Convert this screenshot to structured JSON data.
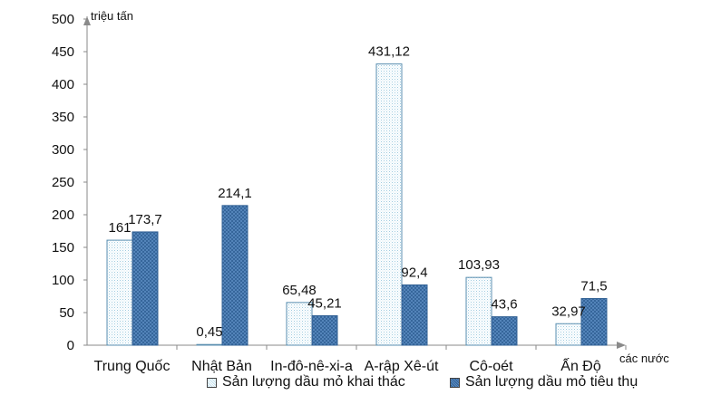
{
  "chart_data": {
    "type": "bar",
    "title": "",
    "ylabel": "triệu tấn",
    "xlabel": "các nước",
    "ylim": [
      0,
      500
    ],
    "yticks": [
      0,
      50,
      100,
      150,
      200,
      250,
      300,
      350,
      400,
      450,
      500
    ],
    "ytick_labels": [
      "0",
      "50",
      "100",
      "150",
      "200",
      "250",
      "300",
      "350",
      "400",
      "450",
      "500"
    ],
    "categories": [
      "Trung Quốc",
      "Nhật Bản",
      "In-đô-nê-xi-a",
      "A-rập Xê-út",
      "Cô-oét",
      "Ấn Độ"
    ],
    "series": [
      {
        "name": "Sản lượng dầu mỏ khai thác",
        "values": [
          161,
          0.45,
          65.48,
          431.12,
          103.93,
          32.97
        ],
        "labels": [
          "161",
          "0,45",
          "65,48",
          "431,12",
          "103,93",
          "32,97"
        ],
        "pattern": "dotted-light",
        "color": "#e8f4fa"
      },
      {
        "name": "Sản lượng dầu mỏ tiêu thụ",
        "values": [
          173.7,
          214.1,
          45.21,
          92.4,
          43.6,
          71.5
        ],
        "labels": [
          "173,7",
          "214,1",
          "45,21",
          "92,4",
          "43,6",
          "71,5"
        ],
        "pattern": "crosshatch-blue",
        "color": "#4a7cb0"
      }
    ],
    "grid": false,
    "legend_position": "bottom"
  }
}
